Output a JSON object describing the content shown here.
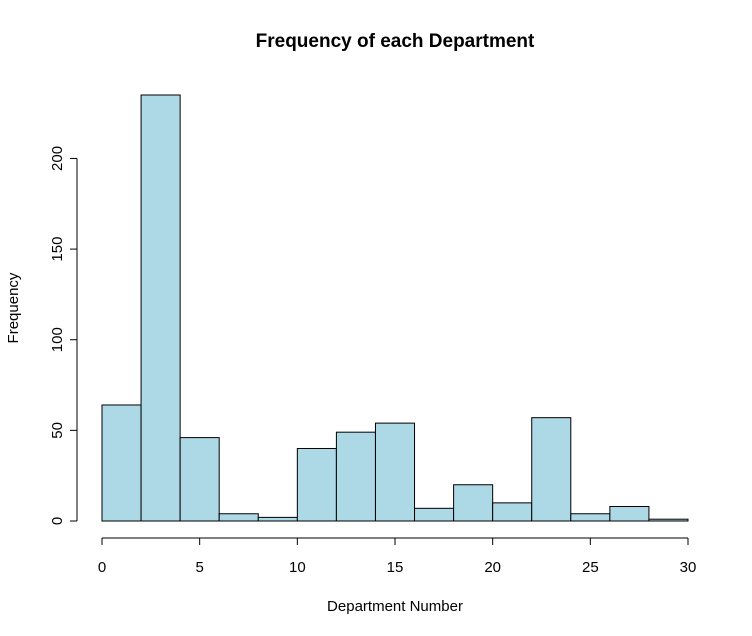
{
  "chart_data": {
    "type": "bar",
    "subtype": "histogram",
    "title": "Frequency of each Department",
    "xlabel": "Department Number",
    "ylabel": "Frequency",
    "bin_edges": [
      0,
      2,
      4,
      6,
      8,
      10,
      12,
      14,
      16,
      18,
      20,
      22,
      24,
      26,
      28,
      30
    ],
    "values": [
      64,
      235,
      46,
      4,
      2,
      40,
      49,
      54,
      7,
      20,
      10,
      57,
      4,
      8,
      1
    ],
    "xlim": [
      0,
      30
    ],
    "ylim": [
      0,
      235
    ],
    "x_ticks": [
      0,
      5,
      10,
      15,
      20,
      25,
      30
    ],
    "y_ticks": [
      0,
      50,
      100,
      150,
      200
    ],
    "bar_color": "#add8e6",
    "grid": false,
    "legend": "none"
  }
}
